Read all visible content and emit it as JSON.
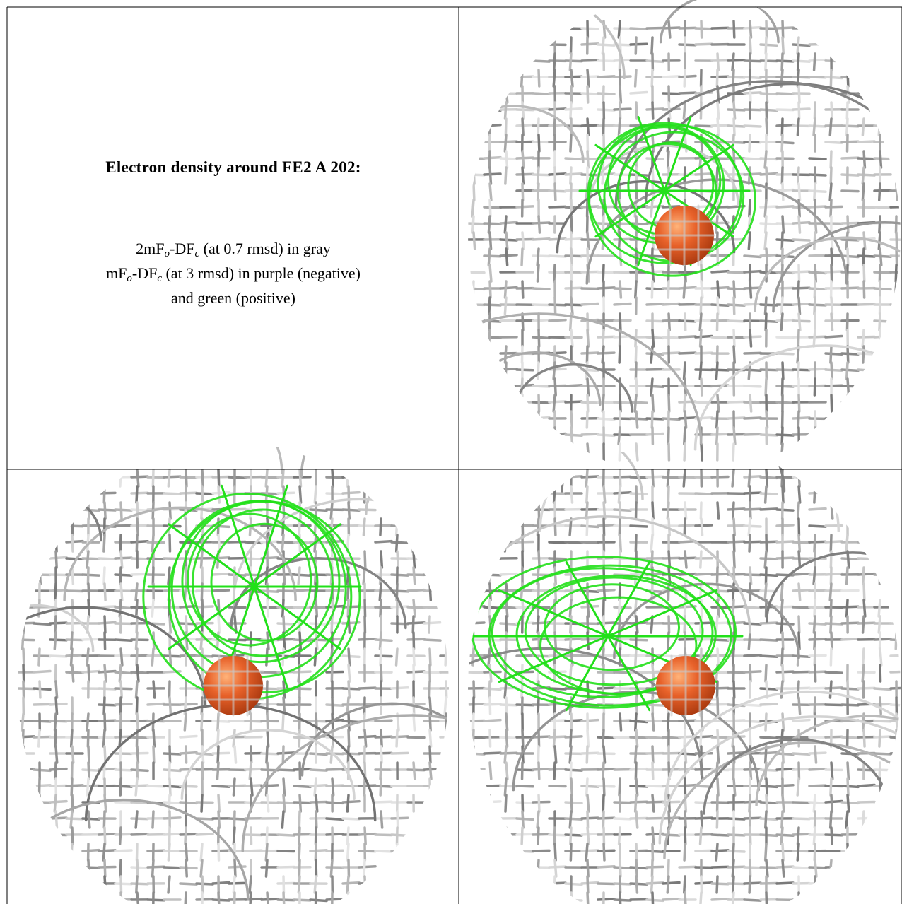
{
  "caption": {
    "title": "Electron density around FE2 A 202:",
    "lines": [
      [
        "2mF",
        "o",
        "-DF",
        "c",
        " (at 0.7 rmsd) in gray"
      ],
      [
        "mF",
        "o",
        "-DF",
        "c",
        " (at 3 rmsd) in purple (negative)"
      ],
      [
        "and green (positive)"
      ]
    ]
  }
}
